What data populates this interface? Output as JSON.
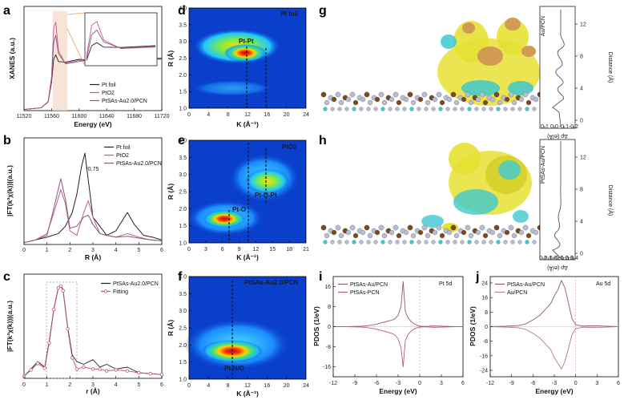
{
  "colors": {
    "pt_foil": "#222222",
    "pto2": "#c35a9a",
    "ptsas": "#8c5a7a",
    "fit": "#c0566f",
    "au_pcn": "#b4788c",
    "cyan": "#3ec9cf",
    "yellow": "#e6e032",
    "brown": "#7a4a1e",
    "gray_atom": "#b8bcd2"
  },
  "panels": [
    {
      "id": "a",
      "label": "a"
    },
    {
      "id": "b",
      "label": "b"
    },
    {
      "id": "c",
      "label": "c"
    },
    {
      "id": "d",
      "label": "d"
    },
    {
      "id": "e",
      "label": "e"
    },
    {
      "id": "f",
      "label": "f"
    },
    {
      "id": "g",
      "label": "g"
    },
    {
      "id": "h",
      "label": "h"
    },
    {
      "id": "i",
      "label": "i"
    },
    {
      "id": "j",
      "label": "j"
    }
  ],
  "chart_data": [
    {
      "id": "a",
      "type": "line",
      "xlabel": "Energy (eV)",
      "ylabel": "XANES (a.u.)",
      "xticks": [
        "11520",
        "11560",
        "11600",
        "11640",
        "11680",
        "11720"
      ],
      "xlim": [
        11520,
        11720
      ],
      "legend": [
        "Pt foil",
        "PtO2",
        "PtSAs-Au2.0/PCN"
      ],
      "legend_position": "bottom-right",
      "inset": true,
      "series": [
        {
          "name": "Pt foil",
          "x": [
            11520,
            11545,
            11555,
            11560,
            11563,
            11566,
            11570,
            11580,
            11600,
            11620,
            11650,
            11680,
            11720
          ],
          "y": [
            0.02,
            0.05,
            0.15,
            0.5,
            0.9,
            0.98,
            0.86,
            0.85,
            0.9,
            0.88,
            0.92,
            0.9,
            0.92
          ]
        },
        {
          "name": "PtO2",
          "x": [
            11520,
            11545,
            11555,
            11560,
            11563,
            11566,
            11570,
            11580,
            11600,
            11620,
            11650,
            11680,
            11720
          ],
          "y": [
            0.02,
            0.05,
            0.16,
            0.6,
            1.45,
            1.55,
            1.05,
            0.82,
            0.86,
            0.9,
            0.88,
            0.91,
            0.9
          ]
        },
        {
          "name": "PtSAs-Au2.0/PCN",
          "x": [
            11520,
            11545,
            11555,
            11560,
            11563,
            11566,
            11570,
            11580,
            11600,
            11620,
            11650,
            11680,
            11720
          ],
          "y": [
            0.02,
            0.05,
            0.15,
            0.55,
            1.2,
            1.32,
            1.0,
            0.83,
            0.88,
            0.89,
            0.9,
            0.9,
            0.91
          ]
        }
      ]
    },
    {
      "id": "b",
      "type": "line",
      "xlabel": "R (Å)",
      "ylabel": "|FT(k³χ(k))|(a.u.)",
      "xticks": [
        "0",
        "1",
        "2",
        "3",
        "4",
        "5",
        "6"
      ],
      "xlim": [
        0,
        6
      ],
      "legend": [
        "Pt foil",
        "PtO2",
        "PtSAs-Au2.0/PCN"
      ],
      "legend_position": "top-right",
      "annotation": "*0.75",
      "series": [
        {
          "name": "Pt foil",
          "x": [
            0,
            0.5,
            1.0,
            1.5,
            1.8,
            2.1,
            2.3,
            2.5,
            2.65,
            2.8,
            3.0,
            3.3,
            3.6,
            4.0,
            4.5,
            4.8,
            5.2,
            5.6,
            6.0
          ],
          "y": [
            0.02,
            0.05,
            0.08,
            0.12,
            0.2,
            0.35,
            0.55,
            0.85,
            1.0,
            0.7,
            0.3,
            0.2,
            0.1,
            0.15,
            0.35,
            0.22,
            0.1,
            0.08,
            0.05
          ]
        },
        {
          "name": "PtO2",
          "x": [
            0,
            0.5,
            1.0,
            1.3,
            1.6,
            1.8,
            2.0,
            2.3,
            2.6,
            2.8,
            3.0,
            3.3,
            3.6,
            4.0,
            4.5,
            5.0,
            5.5,
            6.0
          ],
          "y": [
            0.02,
            0.05,
            0.12,
            0.35,
            0.6,
            0.45,
            0.15,
            0.1,
            0.35,
            0.48,
            0.3,
            0.12,
            0.1,
            0.08,
            0.12,
            0.08,
            0.05,
            0.04
          ]
        },
        {
          "name": "PtSAs-Au2.0/PCN",
          "x": [
            0,
            0.5,
            1.0,
            1.3,
            1.6,
            1.8,
            2.0,
            2.3,
            2.6,
            2.8,
            3.0,
            3.3,
            3.6,
            4.0,
            4.5,
            5.0,
            5.5,
            6.0
          ],
          "y": [
            0.02,
            0.05,
            0.1,
            0.4,
            0.72,
            0.5,
            0.18,
            0.2,
            0.3,
            0.32,
            0.22,
            0.12,
            0.1,
            0.08,
            0.09,
            0.07,
            0.05,
            0.04
          ]
        }
      ]
    },
    {
      "id": "c",
      "type": "line",
      "xlabel": "r (Å)",
      "ylabel": "|FT(k³χ(k))|(a.u.)",
      "xticks": [
        "0",
        "1",
        "2",
        "3",
        "4",
        "5",
        "6"
      ],
      "xlim": [
        0,
        6
      ],
      "legend": [
        "PtSAs-Au2.0/PCN",
        "Fitting"
      ],
      "legend_position": "top-right",
      "series": [
        {
          "name": "PtSAs-Au2.0/PCN",
          "x": [
            0,
            0.3,
            0.6,
            0.9,
            1.1,
            1.3,
            1.5,
            1.6,
            1.7,
            1.9,
            2.1,
            2.3,
            2.6,
            3.0,
            3.3,
            3.6,
            4.0,
            4.5,
            5.0,
            5.5,
            6.0
          ],
          "y": [
            0.02,
            0.1,
            0.18,
            0.12,
            0.4,
            0.75,
            0.98,
            1.0,
            0.95,
            0.55,
            0.25,
            0.18,
            0.15,
            0.2,
            0.12,
            0.15,
            0.1,
            0.12,
            0.06,
            0.05,
            0.04
          ]
        },
        {
          "name": "Fitting",
          "x": [
            0,
            0.3,
            0.6,
            0.9,
            1.1,
            1.3,
            1.5,
            1.6,
            1.7,
            1.9,
            2.1,
            2.3,
            2.6,
            3.0,
            3.3,
            3.6,
            4.0,
            4.5,
            5.0,
            5.5,
            6.0
          ],
          "y": [
            0.02,
            0.09,
            0.16,
            0.11,
            0.38,
            0.74,
            0.97,
            0.99,
            0.94,
            0.53,
            0.22,
            0.1,
            0.12,
            0.1,
            0.1,
            0.08,
            0.09,
            0.08,
            0.06,
            0.05,
            0.04
          ]
        }
      ]
    },
    {
      "id": "d",
      "type": "heatmap",
      "xlabel": "K (Å⁻¹)",
      "ylabel": "R (Å)",
      "xticks": [
        "0",
        "4",
        "8",
        "12",
        "16",
        "20",
        "24"
      ],
      "xlim": [
        0,
        24
      ],
      "yticks": [
        "1.0",
        "1.5",
        "2.0",
        "2.5",
        "3.0",
        "3.5",
        "4.0"
      ],
      "ylim": [
        1.0,
        4.0
      ],
      "corner_label": "Pt foil",
      "peak_label": "Pt-Pt",
      "dashed_x": [
        12,
        16
      ]
    },
    {
      "id": "e",
      "type": "heatmap",
      "xlabel": "K (Å⁻¹)",
      "ylabel": "R (Å)",
      "xticks": [
        "0",
        "3",
        "6",
        "9",
        "12",
        "15",
        "18",
        "21"
      ],
      "xlim": [
        0,
        21
      ],
      "yticks": [
        "1.0",
        "1.5",
        "2.0",
        "2.5",
        "3.0",
        "3.5",
        "4.0"
      ],
      "ylim": [
        1.0,
        4.0
      ],
      "corner_label": "PtO2",
      "peak_labels": [
        "Pt-O",
        "Pt-O-Pt"
      ],
      "dashed_x": [
        6.5,
        10.5,
        14
      ]
    },
    {
      "id": "f",
      "type": "heatmap",
      "xlabel": "K (Å⁻¹)",
      "ylabel": "R (Å)",
      "xticks": [
        "0",
        "4",
        "8",
        "12",
        "16",
        "20",
        "24"
      ],
      "xlim": [
        0,
        24
      ],
      "yticks": [
        "1.0",
        "1.5",
        "2.0",
        "2.5",
        "3.0",
        "3.5",
        "4.0"
      ],
      "ylim": [
        1.0,
        4.0
      ],
      "corner_label": "PtSAs-Au2.0/PCN",
      "peak_label": "Pt-N/O",
      "dashed_x": [
        9
      ]
    },
    {
      "id": "g",
      "type": "line",
      "side_ylabel": "Distance (Å)",
      "side_xlabel": "Δρ (e/Å)",
      "xticks": [
        "0.1",
        "0.0",
        "-0.1",
        "-0.2"
      ],
      "yticks": [
        "0",
        "4",
        "8",
        "12"
      ],
      "legend": [
        "Au/PCN"
      ]
    },
    {
      "id": "h",
      "type": "line",
      "side_ylabel": "Distance (Å)",
      "side_xlabel": "Δρ (e/Å)",
      "xticks": [
        "0.2",
        "0.1",
        "0.0",
        "-0.1",
        "-0.2",
        "-0.3",
        "-0.4"
      ],
      "yticks": [
        "0",
        "4",
        "8",
        "12"
      ],
      "legend": [
        "PtSAs-Au/PCN"
      ]
    },
    {
      "id": "i",
      "type": "line",
      "xlabel": "Energy (eV)",
      "ylabel": "PDOS (1/eV)",
      "xticks": [
        "-12",
        "-9",
        "-6",
        "-3",
        "0",
        "3",
        "6"
      ],
      "xlim": [
        -12,
        6
      ],
      "yticks": [
        "-16",
        "-8",
        "0",
        "8",
        "16"
      ],
      "ylim": [
        -20,
        20
      ],
      "corner_label": "Pt 5d",
      "legend": [
        "PtSAs-Au/PCN",
        "PtSAs-PCN"
      ],
      "series": [
        {
          "name": "PtSAs-Au/PCN",
          "x": [
            -12,
            -10,
            -8,
            -7,
            -6,
            -5,
            -4,
            -3.5,
            -3,
            -2.6,
            -2.3,
            -2,
            -1.6,
            -1.2,
            -0.8,
            -0.4,
            0,
            0.5,
            1,
            2,
            3,
            4,
            5,
            6
          ],
          "y": [
            0,
            0,
            0.2,
            0.5,
            1.0,
            1.8,
            2.5,
            3.0,
            4.5,
            8.0,
            18.0,
            6.0,
            3.5,
            2.0,
            1.2,
            0.6,
            0.2,
            0.1,
            0.1,
            0.3,
            0.2,
            0.1,
            0,
            0
          ]
        },
        {
          "name": "PtSAs-PCN",
          "x": [
            -12,
            -10,
            -8,
            -7,
            -6,
            -5,
            -4,
            -3.5,
            -3,
            -2.6,
            -2.3,
            -2,
            -1.6,
            -1.2,
            -0.8,
            -0.4,
            0,
            0.5,
            1,
            2,
            3,
            4,
            5,
            6
          ],
          "y": [
            0,
            0,
            -0.2,
            -0.5,
            -1.0,
            -1.8,
            -2.6,
            -3.2,
            -4.8,
            -8.5,
            -16.0,
            -5.5,
            -3.0,
            -1.8,
            -1.0,
            -0.5,
            -0.2,
            -0.1,
            -0.1,
            -0.3,
            -0.2,
            -0.1,
            0,
            0
          ]
        }
      ]
    },
    {
      "id": "j",
      "type": "line",
      "xlabel": "Energy (eV)",
      "ylabel": "PDOS (1/eV)",
      "xticks": [
        "-12",
        "-9",
        "-6",
        "-3",
        "0",
        "3",
        "6"
      ],
      "xlim": [
        -12,
        6
      ],
      "yticks": [
        "-24",
        "-16",
        "-8",
        "0",
        "8",
        "16",
        "24"
      ],
      "ylim": [
        -26,
        26
      ],
      "corner_label": "Au 5d",
      "legend": [
        "PtSAs-Au/PCN",
        "Au/PCN"
      ],
      "series": [
        {
          "name": "PtSAs-Au/PCN",
          "x": [
            -12,
            -10,
            -8,
            -7,
            -6,
            -5,
            -4.5,
            -4,
            -3.5,
            -3,
            -2.5,
            -2,
            -1.5,
            -1,
            -0.5,
            0,
            1,
            2,
            3,
            4,
            6
          ],
          "y": [
            0,
            0.2,
            0.6,
            1.5,
            3.5,
            6.0,
            8.0,
            10.0,
            12.0,
            16.0,
            19.0,
            24.0,
            20.0,
            12.0,
            4.0,
            1.0,
            0.3,
            0.4,
            0.5,
            0.3,
            0
          ]
        },
        {
          "name": "Au/PCN",
          "x": [
            -12,
            -10,
            -8,
            -7,
            -6,
            -5,
            -4.5,
            -4,
            -3.5,
            -3,
            -2.5,
            -2,
            -1.5,
            -1,
            -0.5,
            0,
            1,
            2,
            3,
            4,
            6
          ],
          "y": [
            0,
            -0.2,
            -0.6,
            -1.5,
            -3.5,
            -6.0,
            -8.0,
            -10.0,
            -12.0,
            -16.0,
            -19.0,
            -22.0,
            -18.0,
            -11.0,
            -4.0,
            -1.0,
            -0.3,
            -0.4,
            -0.5,
            -0.3,
            0
          ]
        }
      ]
    }
  ]
}
